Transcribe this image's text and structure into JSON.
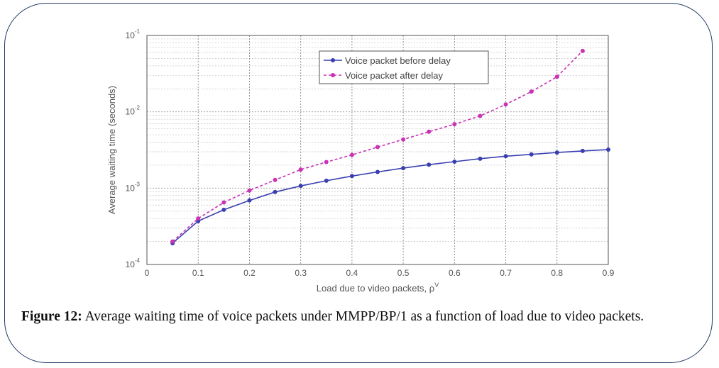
{
  "caption": {
    "label": "Figure 12:",
    "text": "Average waiting time of voice packets under MMPP/BP/1 as a function of load due to video packets."
  },
  "chart_data": {
    "type": "line",
    "xlabel": "Load due to video packets, ρ",
    "xlabel_sup": "V",
    "ylabel": "Average waiting time (seconds)",
    "xlim": [
      0,
      0.9
    ],
    "ylim": [
      0.0001,
      0.1
    ],
    "y_scale": "log",
    "x_ticks": [
      0,
      0.1,
      0.2,
      0.3,
      0.4,
      0.5,
      0.6,
      0.7,
      0.8,
      0.9
    ],
    "y_ticks": [
      {
        "value": 0.0001,
        "base": "10",
        "exp": "-4"
      },
      {
        "value": 0.001,
        "base": "10",
        "exp": "-3"
      },
      {
        "value": 0.01,
        "base": "10",
        "exp": "-2"
      },
      {
        "value": 0.1,
        "base": "10",
        "exp": "-1"
      }
    ],
    "grid": true,
    "legend_position": "top-right",
    "colors": {
      "before": "#3a3fb0",
      "after": "#c832b4"
    },
    "series": [
      {
        "name": "Voice packet before delay",
        "style": "solid",
        "x": [
          0.05,
          0.1,
          0.15,
          0.2,
          0.25,
          0.3,
          0.35,
          0.4,
          0.45,
          0.5,
          0.55,
          0.6,
          0.65,
          0.7,
          0.75,
          0.8,
          0.85,
          0.9
        ],
        "y": [
          0.00019,
          0.00037,
          0.00052,
          0.00069,
          0.00089,
          0.00107,
          0.00125,
          0.00144,
          0.00163,
          0.00183,
          0.00203,
          0.00222,
          0.00243,
          0.00262,
          0.00277,
          0.00293,
          0.00307,
          0.0032
        ]
      },
      {
        "name": "Voice packet after delay",
        "style": "dashed",
        "x": [
          0.05,
          0.1,
          0.15,
          0.2,
          0.25,
          0.3,
          0.35,
          0.4,
          0.45,
          0.5,
          0.55,
          0.6,
          0.65,
          0.7,
          0.75,
          0.8,
          0.85
        ],
        "y": [
          0.0002,
          0.0004,
          0.00065,
          0.00093,
          0.00128,
          0.00175,
          0.0022,
          0.00272,
          0.00345,
          0.00434,
          0.00548,
          0.00688,
          0.00883,
          0.0125,
          0.0184,
          0.0288,
          0.0627
        ]
      }
    ]
  }
}
